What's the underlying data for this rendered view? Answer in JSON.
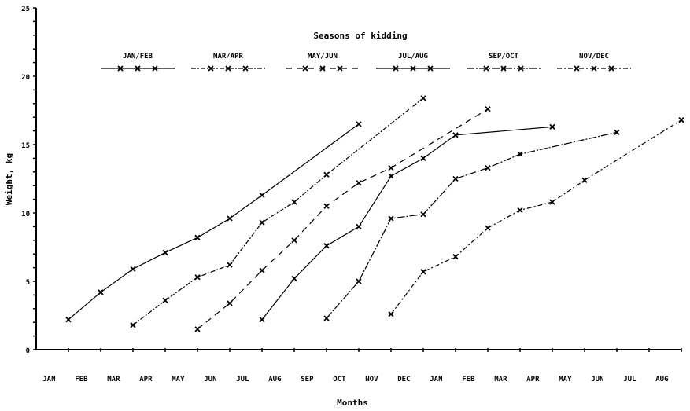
{
  "chart_data": {
    "type": "line",
    "title": "",
    "legend_title": "Seasons of kidding",
    "legend_placement": "top",
    "xlabel": "Months",
    "ylabel": "Weight, kg",
    "ylim": [
      0,
      25
    ],
    "yticks": [
      0,
      5,
      10,
      15,
      20,
      25
    ],
    "x_months": [
      "JAN",
      "FEB",
      "MAR",
      "APR",
      "MAY",
      "JUN",
      "JUL",
      "AUG",
      "SEP",
      "OCT",
      "NOV",
      "DEC",
      "JAN",
      "FEB",
      "MAR",
      "APR",
      "MAY",
      "JUN",
      "JUL",
      "AUG"
    ],
    "x_note": "x values are month-boundary tick indices (1 = end of first JAN)",
    "series": [
      {
        "name": "JAN/FEB",
        "style": "solid",
        "points": [
          [
            1,
            2.2
          ],
          [
            2,
            4.2
          ],
          [
            3,
            5.9
          ],
          [
            4,
            7.1
          ],
          [
            5,
            8.2
          ],
          [
            6,
            9.6
          ],
          [
            7,
            11.3
          ],
          [
            10,
            16.5
          ]
        ]
      },
      {
        "name": "MAR/APR",
        "style": "dash-dot",
        "points": [
          [
            3,
            1.8
          ],
          [
            4,
            3.6
          ],
          [
            5,
            5.3
          ],
          [
            6,
            6.2
          ],
          [
            7,
            9.3
          ],
          [
            8,
            10.8
          ],
          [
            9,
            12.8
          ],
          [
            12,
            18.4
          ]
        ]
      },
      {
        "name": "MAY/JUN",
        "style": "dashed",
        "points": [
          [
            5,
            1.5
          ],
          [
            6,
            3.4
          ],
          [
            7,
            5.8
          ],
          [
            8,
            8.0
          ],
          [
            9,
            10.5
          ],
          [
            10,
            12.2
          ],
          [
            11,
            13.3
          ],
          [
            14,
            17.6
          ]
        ]
      },
      {
        "name": "JUL/AUG",
        "style": "solid",
        "points": [
          [
            7,
            2.2
          ],
          [
            8,
            5.2
          ],
          [
            9,
            7.6
          ],
          [
            10,
            9.0
          ],
          [
            11,
            12.7
          ],
          [
            12,
            14.0
          ],
          [
            13,
            15.7
          ],
          [
            16,
            16.3
          ]
        ]
      },
      {
        "name": "SEP/OCT",
        "style": "long-dash-dot",
        "points": [
          [
            9,
            2.3
          ],
          [
            10,
            5.0
          ],
          [
            11,
            9.6
          ],
          [
            12,
            9.9
          ],
          [
            13,
            12.5
          ],
          [
            14,
            13.3
          ],
          [
            15,
            14.3
          ],
          [
            18,
            15.9
          ]
        ]
      },
      {
        "name": "NOV/DEC",
        "style": "dash-dot-dot",
        "points": [
          [
            11,
            2.6
          ],
          [
            12,
            5.7
          ],
          [
            13,
            6.8
          ],
          [
            14,
            8.9
          ],
          [
            15,
            10.2
          ],
          [
            16,
            10.8
          ],
          [
            17,
            12.4
          ],
          [
            20,
            16.8
          ]
        ]
      }
    ]
  }
}
